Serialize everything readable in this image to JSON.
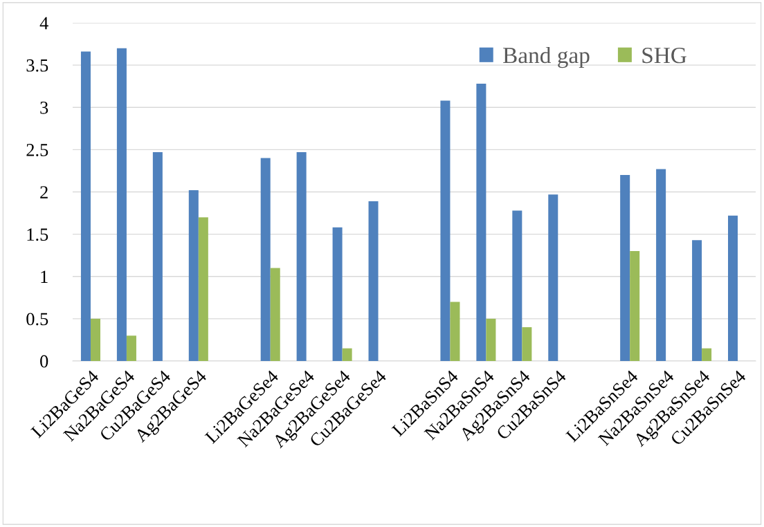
{
  "chart_data": {
    "type": "bar",
    "categories": [
      "Li2BaGeS4",
      "Na2BaGeS4",
      "Cu2BaGeS4",
      "Ag2BaGeS4",
      null,
      "Li2BaGeSe4",
      "Na2BaGeSe4",
      "Ag2BaGeSe4",
      "Cu2BaGeSe4",
      null,
      "Li2BaSnS4",
      "Na2BaSnS4",
      "Ag2BaSnS4",
      "Cu2BaSnS4",
      null,
      "Li2BaSnSe4",
      "Na2BaSnSe4",
      "Ag2BaSnSe4",
      "Cu2BaSnSe4"
    ],
    "series": [
      {
        "name": "Band gap",
        "color": "#4f81bd",
        "values": [
          3.66,
          3.7,
          2.47,
          2.02,
          null,
          2.4,
          2.47,
          1.58,
          1.89,
          null,
          3.08,
          3.28,
          1.78,
          1.97,
          null,
          2.2,
          2.27,
          1.43,
          1.72
        ]
      },
      {
        "name": "SHG",
        "color": "#9bbb59",
        "values": [
          0.5,
          0.3,
          null,
          1.7,
          null,
          1.1,
          null,
          0.15,
          null,
          null,
          0.7,
          0.5,
          0.4,
          null,
          null,
          1.3,
          null,
          0.15,
          null
        ]
      }
    ],
    "ylim": [
      0,
      4
    ],
    "yticks": [
      0,
      0.5,
      1,
      1.5,
      2,
      2.5,
      3,
      3.5,
      4
    ],
    "grid": "y",
    "legend": "top right"
  }
}
